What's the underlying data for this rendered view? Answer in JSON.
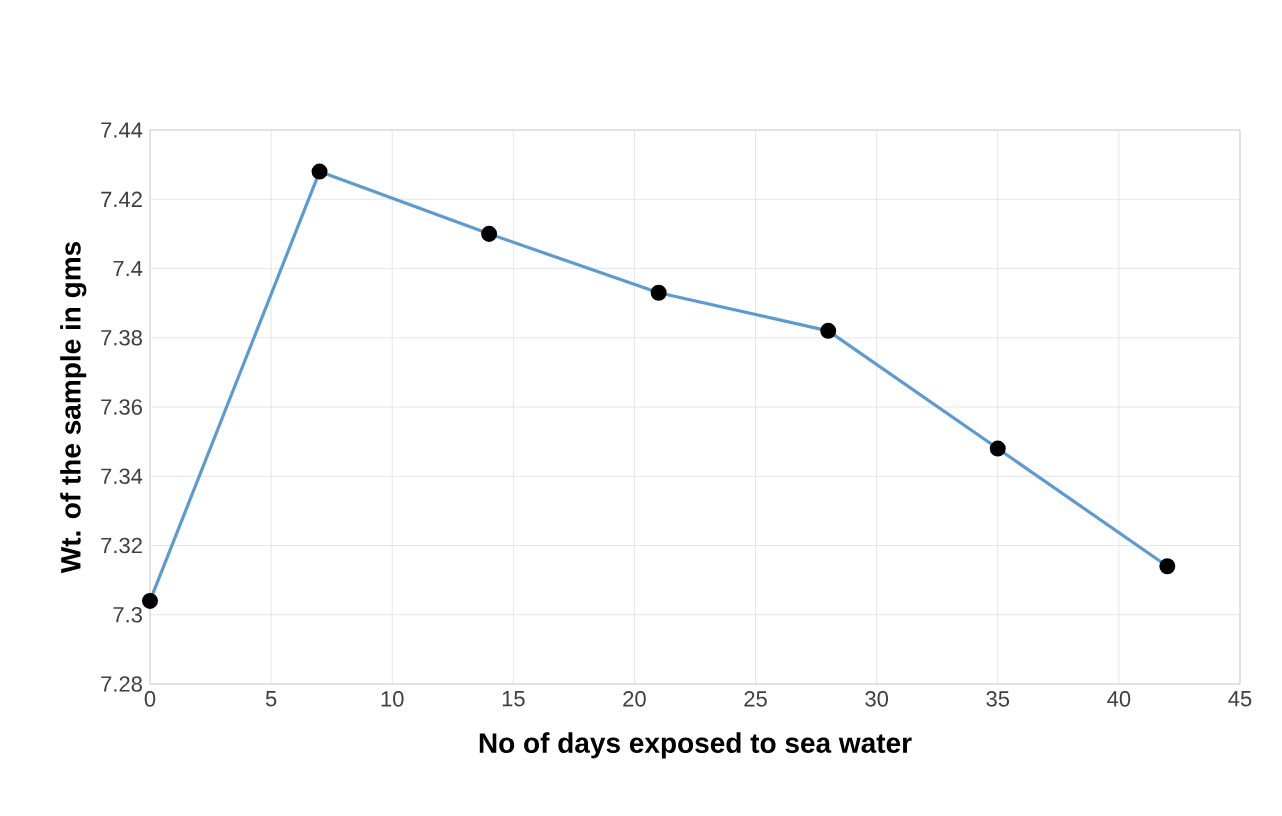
{
  "chart_data": {
    "type": "line",
    "xlabel": "No of days exposed to sea water",
    "ylabel": "Wt. of the sample in gms",
    "x": [
      0,
      7,
      14,
      21,
      28,
      35,
      42
    ],
    "series": [
      {
        "color": "#5b9bd5",
        "values": [
          7.304,
          7.428,
          7.41,
          7.393,
          7.382,
          7.348,
          7.314
        ]
      }
    ],
    "xlim": [
      0,
      45
    ],
    "xticks": [
      0,
      5,
      10,
      15,
      20,
      25,
      30,
      35,
      40,
      45
    ],
    "ylim": [
      7.28,
      7.44
    ],
    "yticks": [
      7.28,
      7.3,
      7.32,
      7.34,
      7.36,
      7.38,
      7.4,
      7.42,
      7.44
    ],
    "grid": true,
    "marker": "circle",
    "line_style": "solid"
  }
}
